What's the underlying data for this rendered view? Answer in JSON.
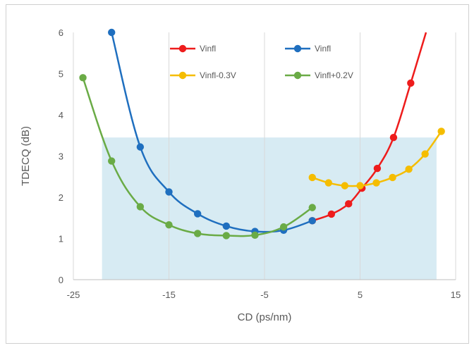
{
  "chart_data": {
    "type": "line",
    "title": "",
    "xlabel": "CD (ps/nm)",
    "ylabel": "TDECQ (dB)",
    "xlim": [
      -25,
      15
    ],
    "ylim": [
      0,
      6
    ],
    "xticks": [
      -25,
      -15,
      -5,
      5,
      15
    ],
    "yticks": [
      0,
      1,
      2,
      3,
      4,
      5,
      6
    ],
    "grid": "vertical",
    "legend": "top-center",
    "shaded_region": {
      "x": [
        -22,
        13
      ],
      "y": [
        0,
        3.45
      ],
      "color": "#d7ebf3"
    },
    "series": [
      {
        "name": "Vinfl",
        "color": "#ee1c1c",
        "x": [
          0,
          2,
          3.8,
          5.2,
          6.8,
          8.5,
          10.3
        ],
        "y": [
          1.43,
          1.59,
          1.84,
          2.22,
          2.7,
          3.45,
          4.77
        ],
        "curve_extends_to": [
          11.9,
          6.0
        ]
      },
      {
        "name": "Vinfl",
        "color": "#1f6fbf",
        "x": [
          -21,
          -18,
          -15,
          -12,
          -9,
          -6,
          -3,
          0
        ],
        "y": [
          6.0,
          3.22,
          2.13,
          1.6,
          1.3,
          1.17,
          1.2,
          1.43
        ]
      },
      {
        "name": "Vinfl-0.3V",
        "color": "#f5bd00",
        "x": [
          0,
          1.7,
          3.4,
          5,
          6.7,
          8.4,
          10.1,
          11.8,
          13.5
        ],
        "y": [
          2.48,
          2.35,
          2.28,
          2.28,
          2.35,
          2.48,
          2.68,
          3.05,
          3.6
        ]
      },
      {
        "name": "Vinfl+0.2V",
        "color": "#6aab46",
        "x": [
          -24,
          -21,
          -18,
          -15,
          -12,
          -9,
          -6,
          -3,
          0
        ],
        "y": [
          4.9,
          2.88,
          1.77,
          1.33,
          1.12,
          1.07,
          1.08,
          1.28,
          1.75
        ]
      }
    ]
  }
}
